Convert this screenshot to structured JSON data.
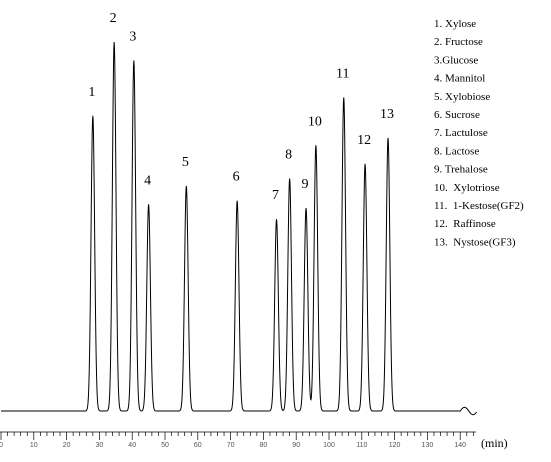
{
  "chart_data": {
    "type": "line",
    "xlabel": "(min)",
    "xlim": [
      0,
      145
    ],
    "x_ticks": [
      "0",
      "10",
      "20",
      "30",
      "40",
      "50",
      "60",
      "70",
      "80",
      "90",
      "100",
      "110",
      "120",
      "130",
      "140"
    ],
    "ylim": [
      0,
      1.02
    ],
    "grid": false,
    "legend_position": "top-right",
    "legend": [
      "1. Xylose",
      "2. Fructose",
      "3.Glucose",
      "4. Mannitol",
      "5. Xylobiose",
      "6. Sucrose",
      "7. Lactulose",
      "8. Lactose",
      "9. Trehalose",
      "10.  Xylotriose",
      "11.  1-Kestose(GF2)",
      "12.  Raffinose",
      "13.  Nystose(GF3)"
    ],
    "peaks": [
      {
        "label": "1",
        "x": 28.0,
        "y": 0.8
      },
      {
        "label": "2",
        "x": 34.5,
        "y": 1.0
      },
      {
        "label": "3",
        "x": 40.5,
        "y": 0.95
      },
      {
        "label": "4",
        "x": 45.0,
        "y": 0.56
      },
      {
        "label": "5",
        "x": 56.5,
        "y": 0.61
      },
      {
        "label": "6",
        "x": 72.0,
        "y": 0.57
      },
      {
        "label": "7",
        "x": 84.0,
        "y": 0.52
      },
      {
        "label": "8",
        "x": 88.0,
        "y": 0.63
      },
      {
        "label": "9",
        "x": 93.0,
        "y": 0.55
      },
      {
        "label": "10",
        "x": 96.0,
        "y": 0.72
      },
      {
        "label": "11",
        "x": 104.5,
        "y": 0.85
      },
      {
        "label": "12",
        "x": 111.0,
        "y": 0.67
      },
      {
        "label": "13",
        "x": 118.0,
        "y": 0.74
      }
    ]
  }
}
